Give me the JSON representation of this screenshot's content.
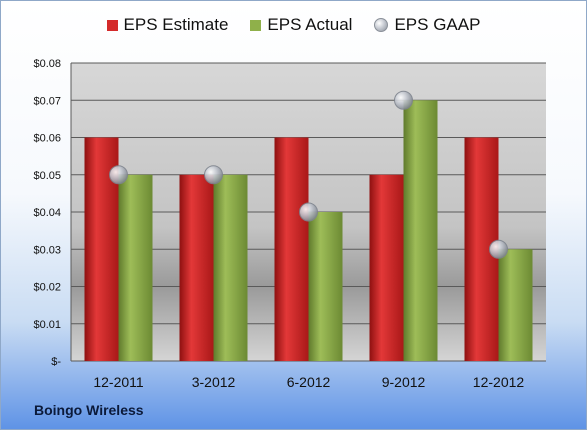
{
  "company": "Boingo Wireless",
  "legend": [
    {
      "name": "EPS Estimate",
      "color": "#d42a2a",
      "shape": "square"
    },
    {
      "name": "EPS Actual",
      "color": "#8fb04a",
      "shape": "square"
    },
    {
      "name": "EPS GAAP",
      "color": "#b9bec7",
      "shape": "circle"
    }
  ],
  "chart_data": {
    "type": "bar",
    "categories": [
      "12-2011",
      "3-2012",
      "6-2012",
      "9-2012",
      "12-2012"
    ],
    "series": [
      {
        "name": "EPS Estimate",
        "type": "bar",
        "color": "#d42a2a",
        "values": [
          0.06,
          0.05,
          0.06,
          0.05,
          0.06
        ]
      },
      {
        "name": "EPS Actual",
        "type": "bar",
        "color": "#8fb04a",
        "values": [
          0.05,
          0.05,
          0.04,
          0.07,
          0.03
        ]
      },
      {
        "name": "EPS GAAP",
        "type": "scatter",
        "color": "#b9bec7",
        "values": [
          0.05,
          0.05,
          0.04,
          0.07,
          0.03
        ]
      }
    ],
    "ylim": [
      0,
      0.08
    ],
    "yticks": [
      0,
      0.01,
      0.02,
      0.03,
      0.04,
      0.05,
      0.06,
      0.07,
      0.08
    ],
    "ytick_labels": [
      "$-",
      "$0.01",
      "$0.02",
      "$0.03",
      "$0.04",
      "$0.05",
      "$0.06",
      "$0.07",
      "$0.08"
    ],
    "grid": true,
    "legend_position": "top"
  }
}
